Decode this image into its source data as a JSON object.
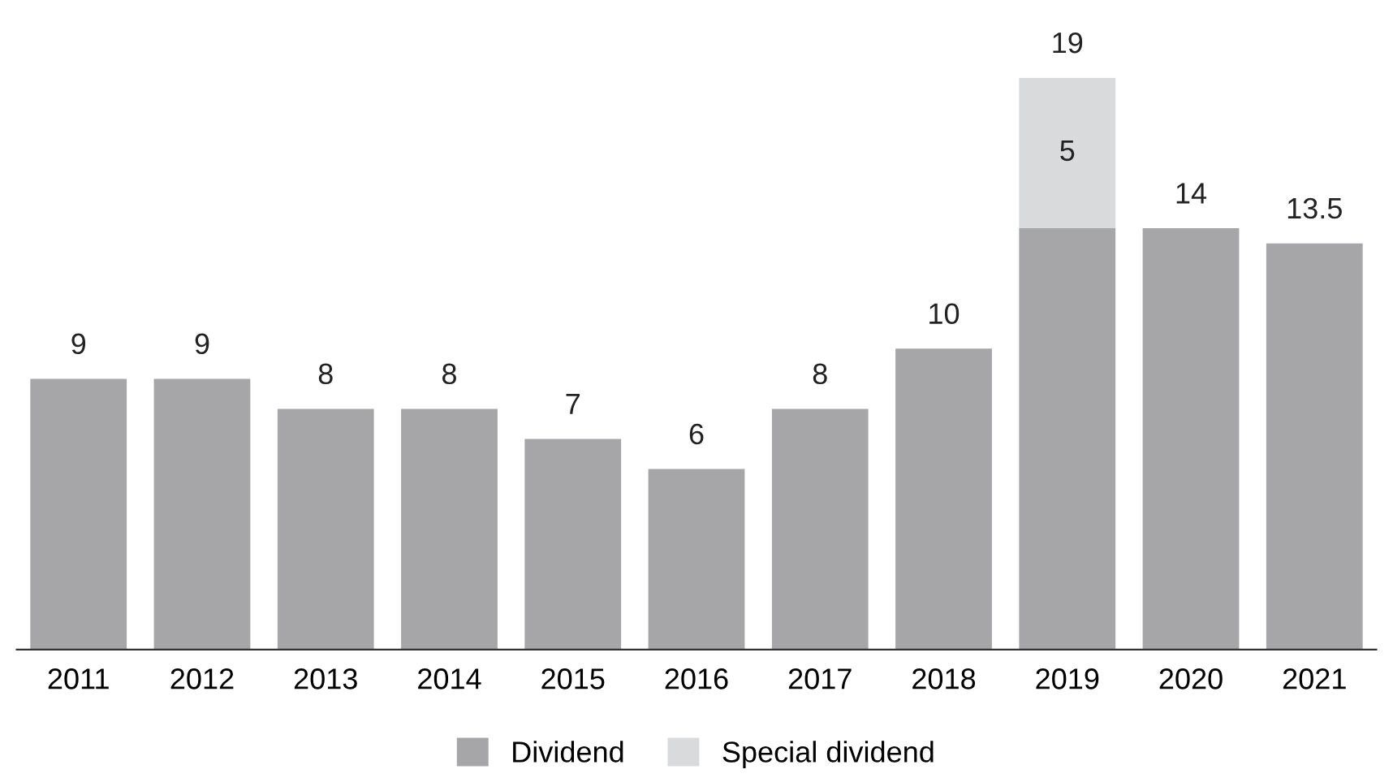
{
  "chart_data": {
    "type": "bar",
    "stacked": true,
    "categories": [
      "2011",
      "2012",
      "2013",
      "2014",
      "2015",
      "2016",
      "2017",
      "2018",
      "2019",
      "2020",
      "2021"
    ],
    "series": [
      {
        "name": "Dividend",
        "color": "#a6a6a9",
        "values": [
          9,
          9,
          8,
          8,
          7,
          6,
          8,
          10,
          14,
          14,
          13.5
        ],
        "value_labels": [
          "9",
          "9",
          "8",
          "8",
          "7",
          "6",
          "8",
          "10",
          null,
          "14",
          "13.5"
        ]
      },
      {
        "name": "Special dividend",
        "color": "#d9dadc",
        "values": [
          null,
          null,
          null,
          null,
          null,
          null,
          null,
          null,
          5,
          null,
          null
        ],
        "value_labels": [
          null,
          null,
          null,
          null,
          null,
          null,
          null,
          null,
          "5",
          null,
          null
        ]
      }
    ],
    "totals": [
      null,
      null,
      null,
      null,
      null,
      null,
      null,
      null,
      "19",
      null,
      null
    ],
    "tick_labels": "x",
    "grid": false,
    "legend": "bottom"
  }
}
